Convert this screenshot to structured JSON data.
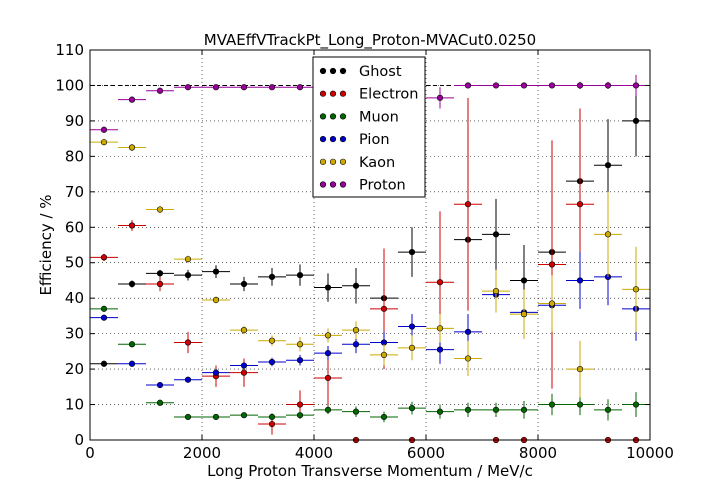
{
  "chart_data": {
    "type": "scatter",
    "title": "MVAEffVTrackPt_Long_Proton-MVACut0.0250",
    "xlabel": "Long Proton Transverse Momentum / MeV/c",
    "ylabel": "Efficiency / %",
    "xlim": [
      0,
      10000
    ],
    "ylim": [
      0,
      110
    ],
    "xticks": [
      0,
      2000,
      4000,
      6000,
      8000,
      10000
    ],
    "yticks": [
      0,
      10,
      20,
      30,
      40,
      50,
      60,
      70,
      80,
      90,
      100,
      110
    ],
    "grid": true,
    "legend_position": "top-center",
    "reference_line_y": 100,
    "bin_half_width": 250,
    "series": [
      {
        "name": "Ghost",
        "color": "#000000",
        "points": [
          [
            250,
            21.5,
            0.5
          ],
          [
            750,
            44,
            1
          ],
          [
            1250,
            47,
            1
          ],
          [
            1750,
            46.5,
            1.5
          ],
          [
            2250,
            47.5,
            1.8
          ],
          [
            2750,
            44,
            2
          ],
          [
            3250,
            46,
            2.5
          ],
          [
            3750,
            46.5,
            3
          ],
          [
            4250,
            43,
            4
          ],
          [
            4750,
            43.5,
            5
          ],
          [
            5250,
            40,
            6
          ],
          [
            5750,
            53,
            7
          ],
          [
            6750,
            56.5,
            10
          ],
          [
            7250,
            58,
            10
          ],
          [
            7750,
            45,
            10
          ],
          [
            8250,
            53,
            12
          ],
          [
            8750,
            73,
            8
          ],
          [
            9250,
            77.5,
            13
          ],
          [
            9750,
            90,
            10
          ]
        ]
      },
      {
        "name": "Electron",
        "color": "#cc0000",
        "points": [
          [
            250,
            51.5,
            1
          ],
          [
            750,
            60.5,
            1.5
          ],
          [
            1250,
            44,
            2
          ],
          [
            1750,
            27.5,
            3
          ],
          [
            2250,
            18,
            3
          ],
          [
            2750,
            19,
            4
          ],
          [
            3250,
            4.5,
            3
          ],
          [
            3750,
            10,
            4
          ],
          [
            4250,
            17.5,
            8
          ],
          [
            4750,
            0,
            0
          ],
          [
            5250,
            37,
            17
          ],
          [
            5750,
            0,
            0
          ],
          [
            6250,
            44.5,
            20
          ],
          [
            6750,
            66.5,
            30
          ],
          [
            7250,
            0,
            0
          ],
          [
            7750,
            0,
            0
          ],
          [
            8250,
            49.5,
            35
          ],
          [
            8750,
            66.5,
            27
          ],
          [
            9250,
            0,
            0
          ],
          [
            9750,
            0,
            0
          ]
        ]
      },
      {
        "name": "Muon",
        "color": "#006600",
        "points": [
          [
            250,
            37,
            0.8
          ],
          [
            750,
            27,
            0.8
          ],
          [
            1250,
            10.5,
            0.8
          ],
          [
            1750,
            6.5,
            0.8
          ],
          [
            2250,
            6.5,
            0.8
          ],
          [
            2750,
            7,
            0.8
          ],
          [
            3250,
            6.5,
            1
          ],
          [
            3750,
            7,
            1
          ],
          [
            4250,
            8.5,
            1.2
          ],
          [
            4750,
            8,
            1.5
          ],
          [
            5250,
            6.5,
            1.5
          ],
          [
            5750,
            9,
            1.8
          ],
          [
            6250,
            8,
            2
          ],
          [
            6750,
            8.5,
            2
          ],
          [
            7250,
            8.5,
            2
          ],
          [
            7750,
            8.5,
            2.5
          ],
          [
            8250,
            10,
            3
          ],
          [
            8750,
            10,
            3
          ],
          [
            9250,
            8.5,
            3
          ],
          [
            9750,
            10,
            3.5
          ]
        ]
      },
      {
        "name": "Pion",
        "color": "#0000cc",
        "points": [
          [
            250,
            34.5,
            0.8
          ],
          [
            750,
            21.5,
            0.8
          ],
          [
            1250,
            15.5,
            0.8
          ],
          [
            1750,
            17,
            0.8
          ],
          [
            2250,
            19,
            1
          ],
          [
            2750,
            21,
            1
          ],
          [
            3250,
            22,
            1.2
          ],
          [
            3750,
            22.5,
            1.5
          ],
          [
            4250,
            24.5,
            2
          ],
          [
            4750,
            27,
            2.5
          ],
          [
            5250,
            27.5,
            3
          ],
          [
            5750,
            32,
            3.5
          ],
          [
            6250,
            25.5,
            4
          ],
          [
            6750,
            30.5,
            5
          ],
          [
            7250,
            41,
            5
          ],
          [
            7750,
            36,
            6
          ],
          [
            8250,
            38,
            7
          ],
          [
            8750,
            45,
            8
          ],
          [
            9250,
            46,
            8
          ],
          [
            9750,
            37,
            9
          ]
        ]
      },
      {
        "name": "Kaon",
        "color": "#ccaa00",
        "points": [
          [
            250,
            84,
            1
          ],
          [
            750,
            82.5,
            1
          ],
          [
            1250,
            65,
            1
          ],
          [
            1750,
            51,
            1
          ],
          [
            2250,
            39.5,
            1
          ],
          [
            2750,
            31,
            1.2
          ],
          [
            3250,
            28,
            1.5
          ],
          [
            3750,
            27,
            2
          ],
          [
            4250,
            29.5,
            2
          ],
          [
            4750,
            31,
            2.5
          ],
          [
            5250,
            24,
            3
          ],
          [
            5750,
            26,
            3.5
          ],
          [
            6250,
            31.5,
            4
          ],
          [
            6750,
            23,
            5
          ],
          [
            7250,
            42,
            6
          ],
          [
            7750,
            35.5,
            7
          ],
          [
            8250,
            38.5,
            8
          ],
          [
            8750,
            20,
            8
          ],
          [
            9250,
            58,
            12
          ],
          [
            9750,
            42.5,
            12
          ]
        ]
      },
      {
        "name": "Proton",
        "color": "#990099",
        "points": [
          [
            250,
            87.5,
            0.8
          ],
          [
            750,
            96,
            0.6
          ],
          [
            1250,
            98.5,
            0.4
          ],
          [
            1750,
            99.5,
            0.3
          ],
          [
            2250,
            99.5,
            0.3
          ],
          [
            2750,
            99.5,
            0.3
          ],
          [
            3250,
            99.5,
            0.3
          ],
          [
            3750,
            99.5,
            0.3
          ],
          [
            6250,
            96.5,
            3
          ],
          [
            6750,
            100,
            0.5
          ],
          [
            7250,
            100,
            0.5
          ],
          [
            7750,
            100,
            0.5
          ],
          [
            8250,
            100,
            0.5
          ],
          [
            8750,
            100,
            1
          ],
          [
            9250,
            100,
            1
          ],
          [
            9750,
            100,
            3
          ]
        ]
      }
    ]
  }
}
